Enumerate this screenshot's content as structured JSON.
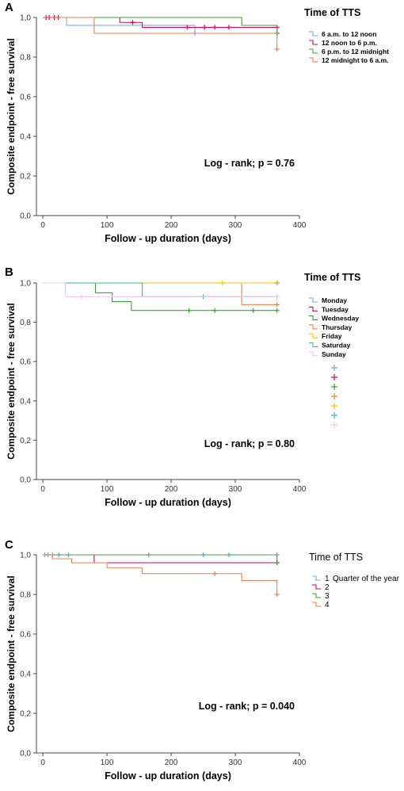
{
  "chart_data": [
    {
      "panel": "A",
      "type": "line",
      "step": true,
      "ylabel": "Composite endpoint - free survival",
      "xlabel": "Follow - up duration (days)",
      "xlim": [
        -10,
        400
      ],
      "ylim": [
        0.0,
        1.0
      ],
      "xticks": [
        0,
        100,
        200,
        300,
        400
      ],
      "yticks": [
        0.0,
        0.2,
        0.4,
        0.6,
        0.8,
        1.0
      ],
      "ytick_labels": [
        "0,0",
        "0,2",
        "0,4",
        "0,6",
        "0,8",
        "1,0"
      ],
      "annotation": "Log - rank; p = 0.76",
      "legend_title": "Time of TTS",
      "legend_position": "right",
      "series": [
        {
          "name": "6 a.m. to 12 noon",
          "color": "#6fa8dc",
          "x": [
            0,
            37,
            237,
            365
          ],
          "y": [
            1.0,
            0.96,
            0.92,
            0.92
          ],
          "censored_x": [
            237,
            365
          ]
        },
        {
          "name": "12 noon to 6 p.m.",
          "color": "#e0004d",
          "x": [
            0,
            120,
            155,
            365
          ],
          "y": [
            1.0,
            0.975,
            0.95,
            0.95
          ],
          "censored_x": [
            5,
            10,
            18,
            24,
            140,
            225,
            252,
            268,
            290,
            365
          ]
        },
        {
          "name": "6 p.m. to 12 midnight",
          "color": "#3ba33b",
          "x": [
            0,
            310,
            365
          ],
          "y": [
            1.0,
            0.96,
            0.92
          ],
          "censored_x": [
            365
          ]
        },
        {
          "name": "12 midnight to 6 a.m.",
          "color": "#f47c4d",
          "x": [
            0,
            80,
            365
          ],
          "y": [
            1.0,
            0.92,
            0.84
          ],
          "censored_x": [
            365
          ]
        }
      ]
    },
    {
      "panel": "B",
      "type": "line",
      "step": true,
      "ylabel": "Composite endpoint - free survival",
      "xlabel": "Follow - up duration (days)",
      "xlim": [
        -10,
        400
      ],
      "ylim": [
        0.0,
        1.0
      ],
      "xticks": [
        0,
        100,
        200,
        300,
        400
      ],
      "yticks": [
        0.0,
        0.2,
        0.4,
        0.6,
        0.8,
        1.0
      ],
      "ytick_labels": [
        "0,0",
        "0,2",
        "0,4",
        "0,6",
        "0,8",
        "1,0"
      ],
      "annotation": "Log - rank; p = 0.80",
      "legend_title": "Time of TTS",
      "legend_position": "right",
      "series": [
        {
          "name": "Monday",
          "color": "#6fa8dc",
          "x": [
            0,
            365
          ],
          "y": [
            1.0,
            1.0
          ],
          "censored_x": [
            365
          ]
        },
        {
          "name": "Tuesday",
          "color": "#e0004d",
          "x": [
            0,
            365
          ],
          "y": [
            1.0,
            1.0
          ],
          "censored_x": [
            365
          ]
        },
        {
          "name": "Wednesday",
          "color": "#3ba33b",
          "x": [
            0,
            82,
            108,
            138,
            365
          ],
          "y": [
            1.0,
            0.95,
            0.905,
            0.86,
            0.86
          ],
          "censored_x": [
            228,
            268,
            328,
            365
          ]
        },
        {
          "name": "Thursday",
          "color": "#f47c4d",
          "x": [
            0,
            310,
            365
          ],
          "y": [
            1.0,
            0.89,
            0.89
          ],
          "censored_x": [
            365
          ]
        },
        {
          "name": "Friday",
          "color": "#f2c500",
          "x": [
            0,
            365
          ],
          "y": [
            1.0,
            1.0
          ],
          "censored_x": [
            280,
            365
          ]
        },
        {
          "name": "Saturday",
          "color": "#3bb8b0",
          "x": [
            0,
            155,
            365
          ],
          "y": [
            1.0,
            0.93,
            0.93
          ],
          "censored_x": [
            250,
            365
          ]
        },
        {
          "name": "Sunday",
          "color": "#f5c6e8",
          "x": [
            0,
            35,
            365
          ],
          "y": [
            1.0,
            0.93,
            0.93
          ],
          "censored_x": [
            60,
            365
          ]
        }
      ]
    },
    {
      "panel": "C",
      "type": "line",
      "step": true,
      "ylabel": "Composite endpoint - free survival",
      "xlabel": "Follow - up duration (days)",
      "xlim": [
        -10,
        400
      ],
      "ylim": [
        0.0,
        1.0
      ],
      "xticks": [
        0,
        100,
        200,
        300,
        400
      ],
      "yticks": [
        0.0,
        0.2,
        0.4,
        0.6,
        0.8,
        1.0
      ],
      "ytick_labels": [
        "0,0",
        "0,2",
        "0,4",
        "0,6",
        "0,8",
        "1,0"
      ],
      "annotation": "Log - rank; p = 0.040",
      "legend_title": "Time of TTS",
      "legend_subtitle": "Quarter of the year",
      "legend_position": "right",
      "series": [
        {
          "name": "1",
          "color": "#6fa8dc",
          "x": [
            0,
            365
          ],
          "y": [
            1.0,
            1.0
          ],
          "censored_x": [
            3,
            8,
            15,
            25,
            40,
            165,
            250,
            290,
            365
          ]
        },
        {
          "name": "2",
          "color": "#e0004d",
          "x": [
            0,
            80,
            365
          ],
          "y": [
            1.0,
            0.96,
            0.96
          ],
          "censored_x": [
            365
          ]
        },
        {
          "name": "3",
          "color": "#3ba33b",
          "x": [
            0,
            365
          ],
          "y": [
            1.0,
            0.96
          ],
          "censored_x": [
            365
          ]
        },
        {
          "name": "4",
          "color": "#f47c4d",
          "x": [
            0,
            15,
            45,
            100,
            155,
            310,
            365
          ],
          "y": [
            1.0,
            0.98,
            0.96,
            0.935,
            0.905,
            0.87,
            0.8
          ],
          "censored_x": [
            268,
            365
          ]
        }
      ]
    }
  ]
}
